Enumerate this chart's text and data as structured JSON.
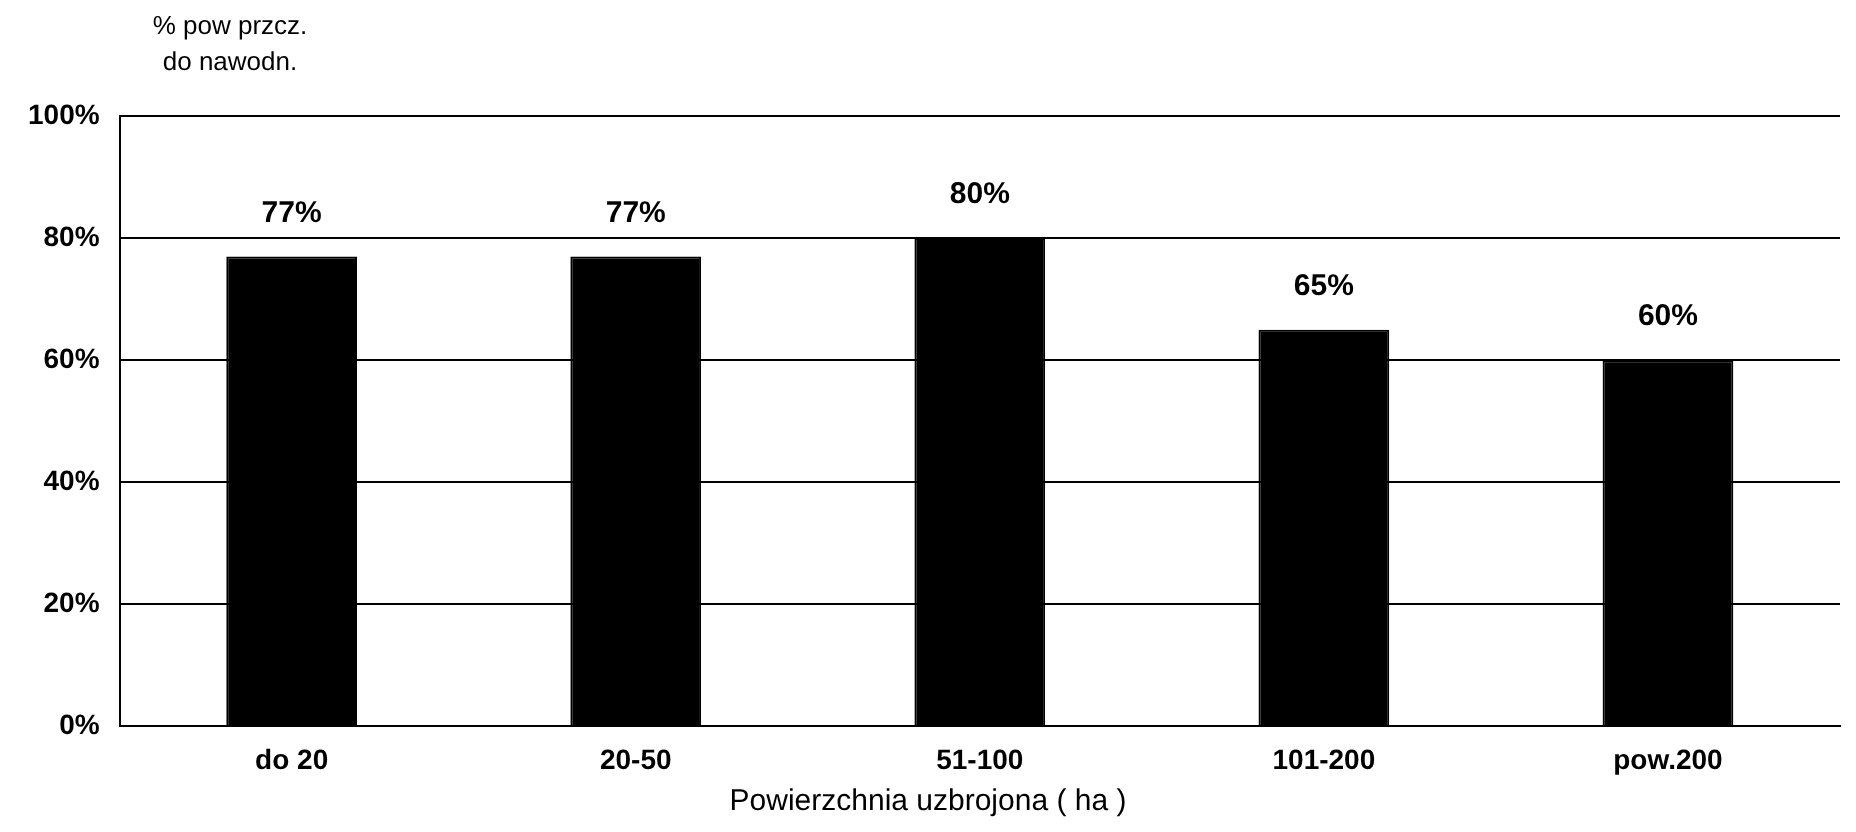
{
  "chart_data": {
    "type": "bar",
    "ylabel": "% pow przcz. do nawodn.",
    "xlabel": "Powierzchnia uzbrojona ( ha )",
    "categories": [
      "do 20",
      "20-50",
      "51-100",
      "101-200",
      "pow.200"
    ],
    "values": [
      77,
      77,
      80,
      65,
      60
    ],
    "value_labels": [
      "77%",
      "77%",
      "80%",
      "65%",
      "60%"
    ],
    "color": "#000000",
    "ylim": [
      0,
      100
    ],
    "yticks": [
      {
        "value": 0,
        "label": "0%"
      },
      {
        "value": 20,
        "label": "20%"
      },
      {
        "value": 40,
        "label": "40%"
      },
      {
        "value": 60,
        "label": "60%"
      },
      {
        "value": 80,
        "label": "80%"
      },
      {
        "value": 100,
        "label": "100%"
      }
    ],
    "grid": "y",
    "legend": false
  }
}
